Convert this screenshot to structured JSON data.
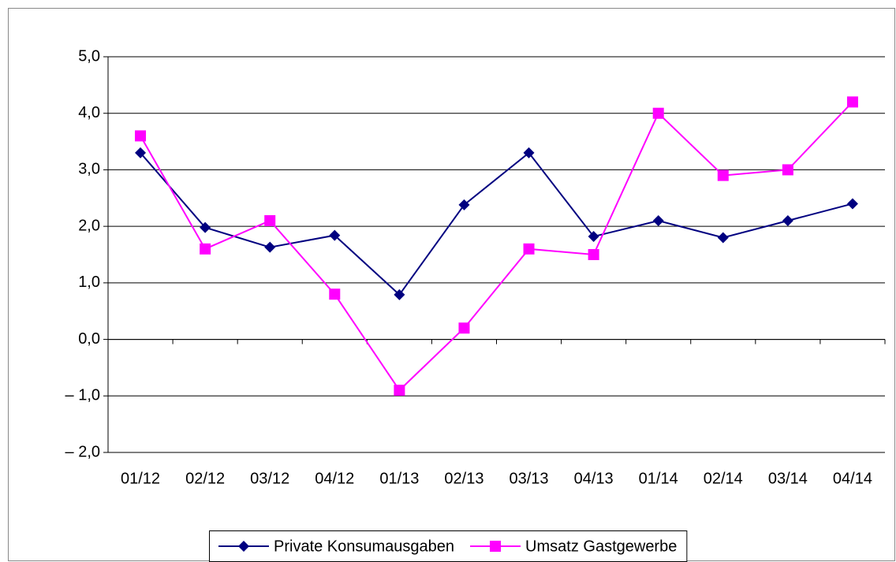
{
  "chart_data": {
    "type": "line",
    "categories": [
      "01/12",
      "02/12",
      "03/12",
      "04/12",
      "01/13",
      "02/13",
      "03/13",
      "04/13",
      "01/14",
      "02/14",
      "03/14",
      "04/14"
    ],
    "series": [
      {
        "name": "Private Konsumausgaben",
        "color": "#000080",
        "marker": "diamond",
        "values": [
          3.3,
          1.98,
          1.63,
          1.84,
          0.79,
          2.38,
          3.3,
          1.82,
          2.1,
          1.8,
          2.1,
          2.4
        ]
      },
      {
        "name": "Umsatz Gastgewerbe",
        "color": "#ff00ff",
        "marker": "square",
        "values": [
          3.6,
          1.6,
          2.1,
          0.8,
          -0.9,
          0.2,
          1.6,
          1.5,
          4.0,
          2.9,
          3.0,
          4.2
        ]
      }
    ],
    "ylim": [
      -2,
      5
    ],
    "yticks": [
      {
        "value": -2,
        "label": "– 2,0"
      },
      {
        "value": -1,
        "label": "– 1,0"
      },
      {
        "value": 0,
        "label": "0,0"
      },
      {
        "value": 1,
        "label": "1,0"
      },
      {
        "value": 2,
        "label": "2,0"
      },
      {
        "value": 3,
        "label": "3,0"
      },
      {
        "value": 4,
        "label": "4,0"
      },
      {
        "value": 5,
        "label": "5,0"
      }
    ],
    "grid": true,
    "legend": "bottom"
  }
}
